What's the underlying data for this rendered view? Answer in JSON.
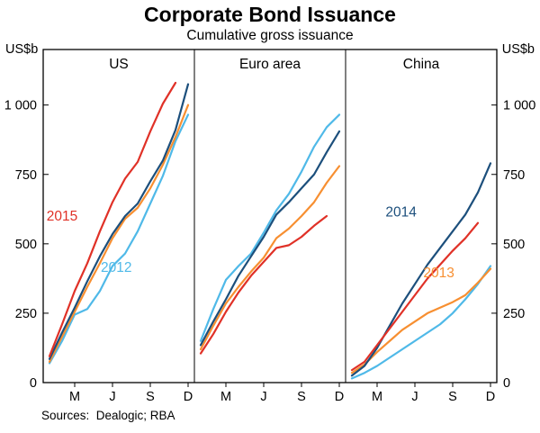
{
  "title": "Corporate Bond Issuance",
  "subtitle": "Cumulative gross issuance",
  "unit_left": "US$b",
  "unit_right": "US$b",
  "footer": "Sources:  Dealogic; RBA",
  "chart_data": {
    "type": "line",
    "ylim": [
      0,
      1200
    ],
    "yticks": [
      0,
      250,
      500,
      750,
      1000
    ],
    "ytick_labels": [
      "0",
      "250",
      "500",
      "750",
      "1 000"
    ],
    "xticks": {
      "months": [
        3,
        6,
        9,
        12
      ],
      "labels": [
        "M",
        "J",
        "S",
        "D"
      ]
    },
    "legend_position": "inline-labels",
    "grid": false,
    "panels": [
      {
        "title": "US",
        "series": [
          {
            "name": "2012",
            "color": "#4fb9e8",
            "start_month": 1,
            "values": [
              70,
              150,
              245,
              265,
              330,
              420,
              465,
              545,
              645,
              745,
              870,
              965
            ]
          },
          {
            "name": "2013",
            "color": "#f78f31",
            "start_month": 1,
            "values": [
              75,
              165,
              255,
              345,
              430,
              520,
              590,
              630,
              700,
              785,
              885,
              1000
            ]
          },
          {
            "name": "2014",
            "color": "#1c4f7c",
            "start_month": 1,
            "values": [
              85,
              180,
              270,
              365,
              455,
              535,
              600,
              645,
              725,
              800,
              910,
              1075
            ]
          },
          {
            "name": "2015",
            "color": "#e03127",
            "start_month": 1,
            "values": [
              95,
              210,
              330,
              430,
              545,
              650,
              735,
              795,
              905,
              1005,
              1080
            ]
          }
        ],
        "labels": [
          {
            "text": "2015",
            "color": "#e03127",
            "month": 2.0,
            "value": 600
          },
          {
            "text": "2012",
            "color": "#4fb9e8",
            "month": 6.3,
            "value": 415
          }
        ]
      },
      {
        "title": "Euro area",
        "series": [
          {
            "name": "2012",
            "color": "#4fb9e8",
            "start_month": 1,
            "values": [
              150,
              265,
              370,
              420,
              465,
              540,
              620,
              680,
              760,
              850,
              920,
              965
            ]
          },
          {
            "name": "2013",
            "color": "#f78f31",
            "start_month": 1,
            "values": [
              120,
              205,
              285,
              345,
              400,
              450,
              520,
              555,
              600,
              650,
              720,
              780
            ]
          },
          {
            "name": "2014",
            "color": "#1c4f7c",
            "start_month": 1,
            "values": [
              135,
              220,
              300,
              385,
              455,
              525,
              605,
              650,
              700,
              750,
              830,
              905
            ]
          },
          {
            "name": "2015",
            "color": "#e03127",
            "start_month": 1,
            "values": [
              105,
              175,
              255,
              325,
              385,
              435,
              485,
              495,
              525,
              565,
              600
            ]
          }
        ],
        "labels": []
      },
      {
        "title": "China",
        "series": [
          {
            "name": "2012",
            "color": "#4fb9e8",
            "start_month": 1,
            "values": [
              15,
              35,
              60,
              90,
              120,
              150,
              180,
              210,
              250,
              300,
              355,
              420
            ]
          },
          {
            "name": "2013",
            "color": "#f78f31",
            "start_month": 1,
            "values": [
              35,
              65,
              110,
              150,
              190,
              220,
              250,
              270,
              290,
              315,
              360,
              410
            ]
          },
          {
            "name": "2014",
            "color": "#1c4f7c",
            "start_month": 1,
            "values": [
              25,
              60,
              125,
              205,
              285,
              355,
              425,
              485,
              545,
              605,
              685,
              790
            ]
          },
          {
            "name": "2015",
            "color": "#e03127",
            "start_month": 1,
            "values": [
              45,
              75,
              135,
              195,
              255,
              315,
              375,
              425,
              475,
              520,
              575
            ]
          }
        ],
        "labels": [
          {
            "text": "2014",
            "color": "#1c4f7c",
            "month": 4.9,
            "value": 615
          },
          {
            "text": "2013",
            "color": "#f78f31",
            "month": 7.9,
            "value": 395
          }
        ]
      }
    ]
  }
}
